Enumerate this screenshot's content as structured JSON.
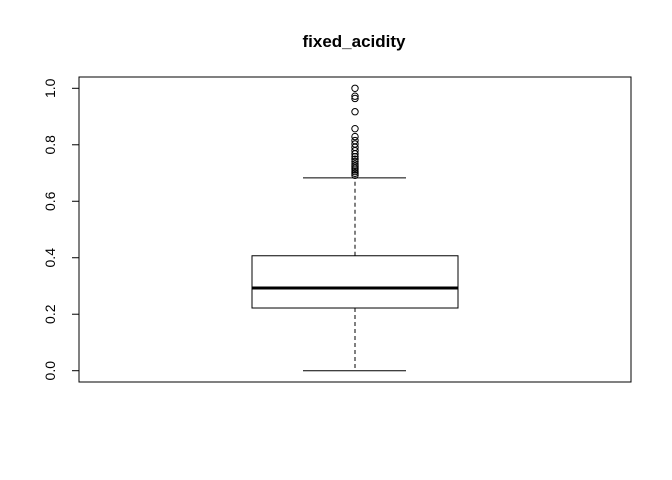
{
  "chart_data": {
    "type": "boxplot",
    "title": "fixed_acidity",
    "xlabel": "",
    "ylabel": "",
    "ylim": [
      -0.04,
      1.04
    ],
    "yticks": [
      0.0,
      0.2,
      0.4,
      0.6,
      0.8,
      1.0
    ],
    "ytick_labels": [
      "0.0",
      "0.2",
      "0.4",
      "0.6",
      "0.8",
      "1.0"
    ],
    "box": {
      "whisker_low": 0.0,
      "q1": 0.222,
      "median": 0.293,
      "q3": 0.407,
      "whisker_high": 0.683
    },
    "outliers": [
      0.692,
      0.699,
      0.705,
      0.711,
      0.717,
      0.724,
      0.732,
      0.741,
      0.749,
      0.758,
      0.768,
      0.779,
      0.791,
      0.803,
      0.815,
      0.829,
      0.857,
      0.917,
      0.964,
      0.972,
      1.0
    ],
    "colors": {
      "box_fill": "#ffffff",
      "stroke": "#000000"
    },
    "grid": false
  }
}
